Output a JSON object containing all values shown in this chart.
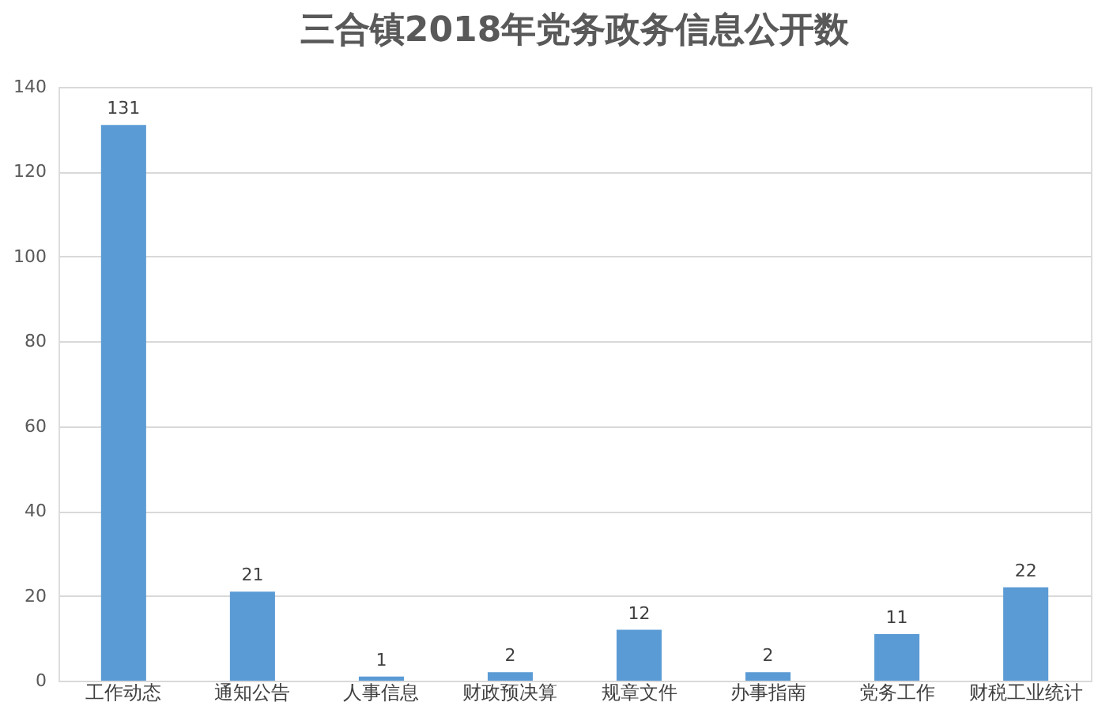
{
  "chart_data": {
    "type": "bar",
    "title": "三合镇2018年党务政务信息公开数",
    "categories": [
      "工作动态",
      "通知公告",
      "人事信息",
      "财政预决算",
      "规章文件",
      "办事指南",
      "党务工作",
      "财税工业统计"
    ],
    "values": [
      131,
      21,
      1,
      2,
      12,
      2,
      11,
      22
    ],
    "color": "#5b9bd5",
    "ylim": [
      0,
      140
    ],
    "yticks": [
      0,
      20,
      40,
      60,
      80,
      100,
      120,
      140
    ],
    "grid": "y",
    "data_labels": true
  }
}
